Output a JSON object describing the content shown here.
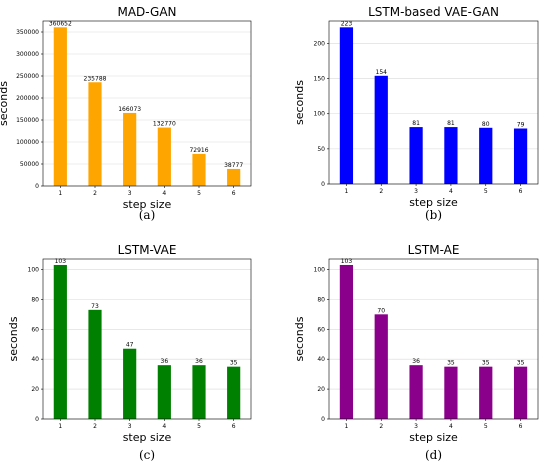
{
  "chart_data": [
    {
      "type": "bar",
      "title": "MAD-GAN",
      "xlabel": "step size",
      "ylabel": "seconds",
      "categories": [
        "1",
        "2",
        "3",
        "4",
        "5",
        "6"
      ],
      "values": [
        360652,
        235788,
        166073,
        132770,
        72916,
        38777
      ],
      "data_labels": [
        "360652",
        "235788",
        "166073",
        "132770",
        "72916",
        "38777"
      ],
      "ylim": [
        0,
        375000
      ],
      "yticks": [
        0,
        50000,
        100000,
        150000,
        200000,
        250000,
        300000,
        350000
      ],
      "ytick_labels": [
        "0",
        "50000",
        "100000",
        "150000",
        "200000",
        "250000",
        "300000",
        "350000"
      ],
      "color": "#FFA500",
      "grid": true,
      "caption": "(a)"
    },
    {
      "type": "bar",
      "title": "LSTM-based VAE-GAN",
      "xlabel": "step size",
      "ylabel": "seconds",
      "categories": [
        "1",
        "2",
        "3",
        "4",
        "5",
        "6"
      ],
      "values": [
        223,
        154,
        81,
        81,
        80,
        79
      ],
      "data_labels": [
        "223",
        "154",
        "81",
        "81",
        "80",
        "79"
      ],
      "ylim": [
        0,
        232
      ],
      "yticks": [
        0,
        50,
        100,
        150,
        200
      ],
      "ytick_labels": [
        "0",
        "50",
        "100",
        "150",
        "200"
      ],
      "color": "#0000FF",
      "grid": true,
      "caption": "(b)"
    },
    {
      "type": "bar",
      "title": "LSTM-VAE",
      "xlabel": "step size",
      "ylabel": "seconds",
      "categories": [
        "1",
        "2",
        "3",
        "4",
        "5",
        "6"
      ],
      "values": [
        103,
        73,
        47,
        36,
        36,
        35
      ],
      "data_labels": [
        "103",
        "73",
        "47",
        "36",
        "36",
        "35"
      ],
      "ylim": [
        0,
        107
      ],
      "yticks": [
        0,
        20,
        40,
        60,
        80,
        100
      ],
      "ytick_labels": [
        "0",
        "20",
        "40",
        "60",
        "80",
        "100"
      ],
      "color": "#008000",
      "grid": true,
      "caption": "(c)"
    },
    {
      "type": "bar",
      "title": "LSTM-AE",
      "xlabel": "step size",
      "ylabel": "seconds",
      "categories": [
        "1",
        "2",
        "3",
        "4",
        "5",
        "6"
      ],
      "values": [
        103,
        70,
        36,
        35,
        35,
        35
      ],
      "data_labels": [
        "103",
        "70",
        "36",
        "35",
        "35",
        "35"
      ],
      "ylim": [
        0,
        107
      ],
      "yticks": [
        0,
        20,
        40,
        60,
        80,
        100
      ],
      "ytick_labels": [
        "0",
        "20",
        "40",
        "60",
        "80",
        "100"
      ],
      "color": "#8B008B",
      "grid": true,
      "caption": "(d)"
    }
  ]
}
